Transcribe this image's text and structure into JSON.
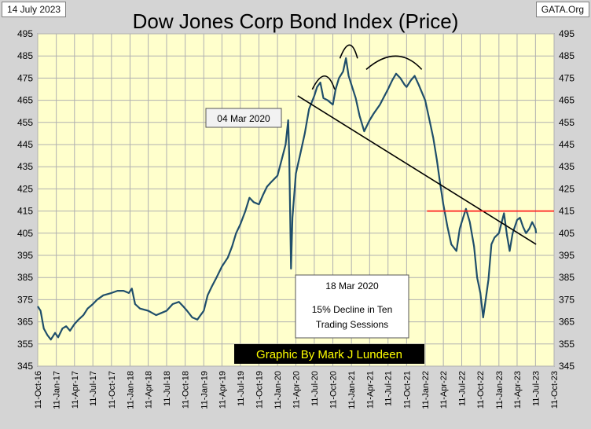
{
  "header": {
    "date": "14 July 2023",
    "site": "GATA.Org",
    "title": "Dow Jones Corp Bond Index (Price)"
  },
  "annotations": {
    "mar4": "04 Mar 2020",
    "mar18_title": "18 Mar 2020",
    "mar18_line1": "15% Decline in Ten",
    "mar18_line2": "Trading Sessions",
    "credit": "Graphic By Mark J Lundeen"
  },
  "colors": {
    "plot_bg": "#ffffcc",
    "grid": "#b0b0b0",
    "series": "#1f4e6b",
    "trendline": "#000000",
    "resistance": "#ff2020",
    "credit_bg": "#000000",
    "credit_text": "#ffff00"
  },
  "chart_data": {
    "type": "line",
    "title": "Dow Jones Corp Bond Index (Price)",
    "ylim": [
      345,
      495
    ],
    "yticks": [
      345,
      355,
      365,
      375,
      385,
      395,
      405,
      415,
      425,
      435,
      445,
      455,
      465,
      475,
      485,
      495
    ],
    "xlim": [
      "2016-10-11",
      "2023-10-11"
    ],
    "xticks": [
      "11-Oct-16",
      "11-Jan-17",
      "11-Apr-17",
      "11-Jul-17",
      "11-Oct-17",
      "11-Jan-18",
      "11-Apr-18",
      "11-Jul-18",
      "11-Oct-18",
      "11-Jan-19",
      "11-Apr-19",
      "11-Jul-19",
      "11-Oct-19",
      "11-Jan-20",
      "11-Apr-20",
      "11-Jul-20",
      "11-Oct-20",
      "11-Jan-21",
      "11-Apr-21",
      "11-Jul-21",
      "11-Oct-21",
      "11-Jan-22",
      "11-Apr-22",
      "11-Jul-22",
      "11-Oct-22",
      "11-Jan-23",
      "11-Apr-23",
      "11-Jul-23",
      "11-Oct-23"
    ],
    "series": [
      {
        "name": "Dow Jones Corp Bond Index (Price)",
        "points": [
          [
            "2016-10-11",
            372
          ],
          [
            "2016-10-25",
            370
          ],
          [
            "2016-11-10",
            362
          ],
          [
            "2016-11-28",
            359
          ],
          [
            "2016-12-15",
            357
          ],
          [
            "2017-01-05",
            360
          ],
          [
            "2017-01-20",
            358
          ],
          [
            "2017-02-10",
            362
          ],
          [
            "2017-03-01",
            363
          ],
          [
            "2017-03-20",
            361
          ],
          [
            "2017-04-11",
            364
          ],
          [
            "2017-05-01",
            366
          ],
          [
            "2017-05-25",
            368
          ],
          [
            "2017-06-15",
            371
          ],
          [
            "2017-07-11",
            373
          ],
          [
            "2017-08-01",
            375
          ],
          [
            "2017-09-01",
            377
          ],
          [
            "2017-10-11",
            378
          ],
          [
            "2017-11-10",
            379
          ],
          [
            "2017-12-10",
            379
          ],
          [
            "2018-01-05",
            378
          ],
          [
            "2018-01-20",
            380
          ],
          [
            "2018-02-05",
            373
          ],
          [
            "2018-03-01",
            371
          ],
          [
            "2018-04-11",
            370
          ],
          [
            "2018-05-01",
            369
          ],
          [
            "2018-05-20",
            368
          ],
          [
            "2018-06-15",
            369
          ],
          [
            "2018-07-11",
            370
          ],
          [
            "2018-08-10",
            373
          ],
          [
            "2018-09-10",
            374
          ],
          [
            "2018-10-01",
            372
          ],
          [
            "2018-10-20",
            370
          ],
          [
            "2018-11-15",
            367
          ],
          [
            "2018-12-10",
            366
          ],
          [
            "2019-01-11",
            370
          ],
          [
            "2019-01-30",
            377
          ],
          [
            "2019-02-20",
            381
          ],
          [
            "2019-03-15",
            385
          ],
          [
            "2019-04-11",
            390
          ],
          [
            "2019-05-10",
            394
          ],
          [
            "2019-05-31",
            399
          ],
          [
            "2019-06-20",
            405
          ],
          [
            "2019-07-11",
            409
          ],
          [
            "2019-08-05",
            415
          ],
          [
            "2019-08-25",
            421
          ],
          [
            "2019-09-15",
            419
          ],
          [
            "2019-10-11",
            418
          ],
          [
            "2019-10-30",
            422
          ],
          [
            "2019-11-20",
            426
          ],
          [
            "2019-12-10",
            428
          ],
          [
            "2020-01-11",
            431
          ],
          [
            "2020-01-31",
            438
          ],
          [
            "2020-02-20",
            445
          ],
          [
            "2020-03-04",
            456
          ],
          [
            "2020-03-09",
            440
          ],
          [
            "2020-03-18",
            389
          ],
          [
            "2020-03-25",
            412
          ],
          [
            "2020-04-11",
            432
          ],
          [
            "2020-05-01",
            440
          ],
          [
            "2020-05-25",
            450
          ],
          [
            "2020-06-15",
            461
          ],
          [
            "2020-07-11",
            467
          ],
          [
            "2020-07-25",
            471
          ],
          [
            "2020-08-10",
            473
          ],
          [
            "2020-08-25",
            466
          ],
          [
            "2020-09-15",
            465
          ],
          [
            "2020-10-11",
            463
          ],
          [
            "2020-10-25",
            470
          ],
          [
            "2020-11-10",
            475
          ],
          [
            "2020-12-01",
            478
          ],
          [
            "2020-12-15",
            484
          ],
          [
            "2020-12-28",
            476
          ],
          [
            "2021-01-11",
            472
          ],
          [
            "2021-02-01",
            466
          ],
          [
            "2021-02-20",
            458
          ],
          [
            "2021-03-15",
            451
          ],
          [
            "2021-04-11",
            456
          ],
          [
            "2021-05-01",
            459
          ],
          [
            "2021-06-01",
            463
          ],
          [
            "2021-07-11",
            470
          ],
          [
            "2021-08-01",
            474
          ],
          [
            "2021-08-20",
            477
          ],
          [
            "2021-09-10",
            475
          ],
          [
            "2021-10-01",
            472
          ],
          [
            "2021-10-11",
            471
          ],
          [
            "2021-11-01",
            474
          ],
          [
            "2021-11-20",
            476
          ],
          [
            "2021-12-10",
            472
          ],
          [
            "2022-01-11",
            465
          ],
          [
            "2022-01-30",
            457
          ],
          [
            "2022-02-20",
            448
          ],
          [
            "2022-03-10",
            438
          ],
          [
            "2022-03-25",
            428
          ],
          [
            "2022-04-11",
            418
          ],
          [
            "2022-05-01",
            408
          ],
          [
            "2022-05-20",
            400
          ],
          [
            "2022-06-15",
            397
          ],
          [
            "2022-07-01",
            407
          ],
          [
            "2022-07-11",
            410
          ],
          [
            "2022-08-01",
            416
          ],
          [
            "2022-08-20",
            410
          ],
          [
            "2022-09-10",
            399
          ],
          [
            "2022-09-25",
            385
          ],
          [
            "2022-10-11",
            378
          ],
          [
            "2022-10-25",
            367
          ],
          [
            "2022-11-05",
            374
          ],
          [
            "2022-11-20",
            384
          ],
          [
            "2022-12-05",
            400
          ],
          [
            "2022-12-20",
            403
          ],
          [
            "2023-01-11",
            405
          ],
          [
            "2023-01-25",
            410
          ],
          [
            "2023-02-05",
            414
          ],
          [
            "2023-02-20",
            404
          ],
          [
            "2023-03-05",
            397
          ],
          [
            "2023-03-20",
            405
          ],
          [
            "2023-04-11",
            411
          ],
          [
            "2023-04-25",
            412
          ],
          [
            "2023-05-10",
            408
          ],
          [
            "2023-05-25",
            405
          ],
          [
            "2023-06-10",
            407
          ],
          [
            "2023-06-25",
            410
          ],
          [
            "2023-07-11",
            407
          ],
          [
            "2023-07-14",
            405
          ]
        ]
      }
    ],
    "trendline": {
      "from": [
        "2020-04-20",
        467
      ],
      "to": [
        "2023-07-14",
        400
      ]
    },
    "resistance": {
      "value": 415,
      "from": "2022-01-20",
      "to": "2023-10-11"
    },
    "arcs": [
      {
        "from": "2020-07-01",
        "peak": "2020-09-05",
        "to": "2020-10-20",
        "level": 477
      },
      {
        "from": "2020-11-15",
        "peak": "2021-01-05",
        "to": "2021-02-10",
        "level": 491
      },
      {
        "from": "2021-03-25",
        "peak": "2021-08-25",
        "to": "2021-12-25",
        "level": 486
      }
    ]
  }
}
